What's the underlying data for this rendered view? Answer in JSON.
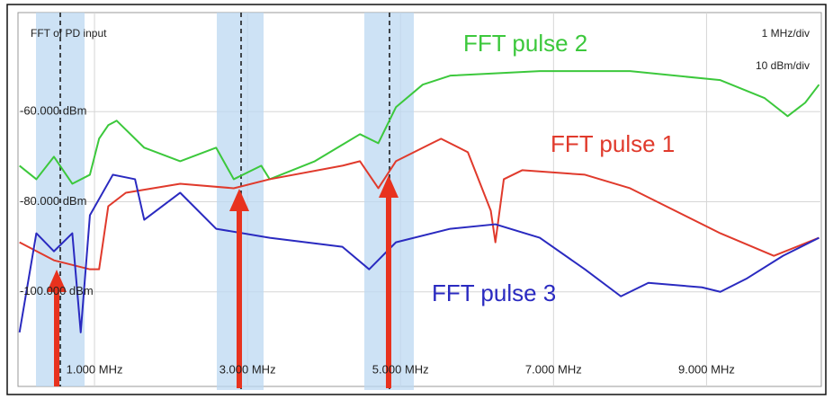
{
  "chart_data": {
    "type": "line",
    "title": "FFT of PD input",
    "annotations": [
      "1 MHz/div",
      "10 dBm/div"
    ],
    "xlim": [
      0,
      10.5
    ],
    "ylim": [
      -121,
      -38
    ],
    "xticks": [
      {
        "value": 1,
        "label": "1.000 MHz"
      },
      {
        "value": 3,
        "label": "3.000 MHz"
      },
      {
        "value": 5,
        "label": "5.000 MHz"
      },
      {
        "value": 7,
        "label": "7.000 MHz"
      },
      {
        "value": 9,
        "label": "9.000 MHz"
      }
    ],
    "yticks": [
      {
        "value": -60,
        "label": "-60.000 dBm"
      },
      {
        "value": -80,
        "label": "-80.000 dBm"
      },
      {
        "value": -100,
        "label": "-100.000 dBm"
      }
    ],
    "grid": true,
    "series": [
      {
        "name": "FFT pulse 2",
        "color": "#3cc83c",
        "x": [
          0.02,
          0.24,
          0.47,
          0.71,
          0.94,
          1.06,
          1.18,
          1.29,
          1.65,
          2.12,
          2.59,
          2.82,
          3.18,
          3.29,
          3.88,
          4.47,
          4.71,
          4.94,
          5.29,
          5.65,
          6.82,
          8.0,
          9.18,
          9.76,
          10.06,
          10.29,
          10.47
        ],
        "values": [
          -72,
          -75,
          -70,
          -76,
          -74,
          -66,
          -63,
          -62,
          -68,
          -71,
          -68,
          -75,
          -72,
          -75,
          -71,
          -65,
          -67,
          -59,
          -54,
          -52,
          -51,
          -51,
          -53,
          -57,
          -61,
          -58,
          -54
        ]
      },
      {
        "name": "FFT pulse 1",
        "color": "#e03a2c",
        "x": [
          0.02,
          0.47,
          0.94,
          1.06,
          1.18,
          1.41,
          2.12,
          2.82,
          3.29,
          4.24,
          4.47,
          4.71,
          4.94,
          5.41,
          5.53,
          5.88,
          6.18,
          6.24,
          6.35,
          6.59,
          7.41,
          8.0,
          9.18,
          9.88,
          10.47
        ],
        "values": [
          -89,
          -93,
          -95,
          -95,
          -81,
          -78,
          -76,
          -77,
          -75,
          -72,
          -71,
          -77,
          -71,
          -67,
          -66,
          -69,
          -82,
          -89,
          -75,
          -73,
          -74,
          -77,
          -87,
          -92,
          -88
        ]
      },
      {
        "name": "FFT pulse 3",
        "color": "#2a2ac0",
        "x": [
          0.02,
          0.24,
          0.47,
          0.71,
          0.82,
          0.94,
          1.24,
          1.53,
          1.65,
          2.12,
          2.59,
          3.29,
          4.24,
          4.59,
          4.94,
          5.65,
          6.24,
          6.82,
          7.41,
          7.88,
          8.24,
          8.94,
          9.18,
          9.53,
          10.0,
          10.47
        ],
        "values": [
          -109,
          -87,
          -91,
          -87,
          -109,
          -83,
          -74,
          -75,
          -84,
          -78,
          -86,
          -88,
          -90,
          -95,
          -89,
          -86,
          -85,
          -88,
          -95,
          -101,
          -98,
          -99,
          -100,
          -97,
          -92,
          -88
        ]
      }
    ]
  }
}
